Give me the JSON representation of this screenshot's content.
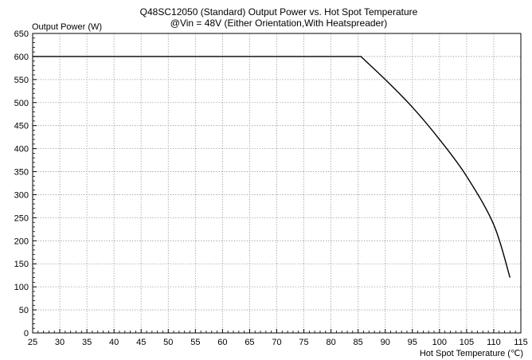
{
  "chart_data": {
    "type": "line",
    "title": "Q48SC12050 (Standard)  Output Power vs. Hot Spot Temperature",
    "subtitle": "@Vin = 48V (Either Orientation,With Heatspreader)",
    "xlabel": "Hot Spot Temperature (℃)",
    "ylabel": "Output Power (W)",
    "xlim": [
      25,
      115
    ],
    "ylim": [
      0,
      650
    ],
    "xticks": [
      25,
      30,
      35,
      40,
      45,
      50,
      55,
      60,
      65,
      70,
      75,
      80,
      85,
      90,
      95,
      100,
      105,
      110,
      115
    ],
    "yticks": [
      0,
      50,
      100,
      150,
      200,
      250,
      300,
      350,
      400,
      450,
      500,
      550,
      600,
      650
    ],
    "grid": true,
    "grid_style": "dotted",
    "series": [
      {
        "color": "#000000",
        "x": [
          25,
          85.5,
          90,
          95,
          100,
          105,
          110,
          113
        ],
        "y": [
          600,
          600,
          550,
          490,
          420,
          340,
          235,
          120
        ]
      }
    ]
  }
}
